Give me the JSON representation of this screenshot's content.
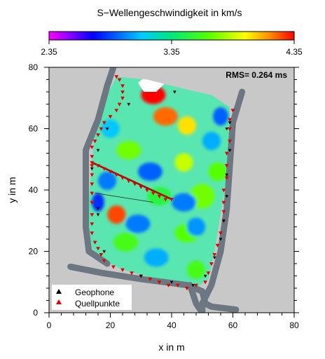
{
  "chart_data": {
    "type": "heatmap",
    "title": "S−Wellengeschwindigkeit in km/s",
    "xlabel": "x in m",
    "ylabel": "y in m",
    "xlim": [
      0,
      80
    ],
    "ylim": [
      0,
      80
    ],
    "x_ticks": [
      "0",
      "20",
      "40",
      "60",
      "80"
    ],
    "y_ticks": [
      "0",
      "20",
      "40",
      "60",
      "80"
    ],
    "colorbar": {
      "min": 2.35,
      "max": 4.35,
      "ticks": [
        "2.35",
        "3.35",
        "4.35"
      ],
      "colormap": "rainbow",
      "orientation": "horizontal",
      "placement": "top"
    },
    "annotation": "RMS= 0.264 ms",
    "grid": false,
    "background_color": "#c8c8c8",
    "legend": {
      "placement": "bottom-left",
      "entries": [
        {
          "label": "Geophone",
          "marker": "triangle-up",
          "color": "#000000"
        },
        {
          "label": "Quellpunkte",
          "marker": "triangle-up",
          "color": "#e00000"
        }
      ]
    },
    "model_outline": [
      [
        14,
        49
      ],
      [
        15,
        60
      ],
      [
        19,
        71
      ],
      [
        22,
        77
      ],
      [
        32,
        76
      ],
      [
        44,
        73
      ],
      [
        53,
        71
      ],
      [
        59,
        67
      ],
      [
        59,
        57
      ],
      [
        58,
        44
      ],
      [
        56,
        32
      ],
      [
        54,
        20
      ],
      [
        52,
        11
      ],
      [
        48,
        8
      ],
      [
        43,
        8
      ],
      [
        35,
        11
      ],
      [
        24,
        14
      ],
      [
        18,
        17
      ],
      [
        14,
        21
      ],
      [
        13,
        28
      ],
      [
        13,
        38
      ]
    ],
    "velocity_anomalies": [
      {
        "x": 22,
        "y": 32,
        "sx": 3,
        "sy": 3,
        "v": 4.25
      },
      {
        "x": 38,
        "y": 64,
        "sx": 4,
        "sy": 3,
        "v": 4.2
      },
      {
        "x": 34,
        "y": 71,
        "sx": 4,
        "sy": 3,
        "v": 4.35
      },
      {
        "x": 45,
        "y": 61,
        "sx": 3,
        "sy": 3,
        "v": 4.0
      },
      {
        "x": 44,
        "y": 49,
        "sx": 3,
        "sy": 3,
        "v": 3.85
      },
      {
        "x": 26,
        "y": 53,
        "sx": 4,
        "sy": 3,
        "v": 3.7
      },
      {
        "x": 55,
        "y": 46,
        "sx": 3,
        "sy": 3,
        "v": 3.65
      },
      {
        "x": 50,
        "y": 38,
        "sx": 4,
        "sy": 4,
        "v": 3.7
      },
      {
        "x": 36,
        "y": 38,
        "sx": 4,
        "sy": 3,
        "v": 3.5
      },
      {
        "x": 25,
        "y": 23,
        "sx": 4,
        "sy": 3,
        "v": 3.6
      },
      {
        "x": 45,
        "y": 26,
        "sx": 4,
        "sy": 3,
        "v": 3.65
      },
      {
        "x": 48,
        "y": 14,
        "sx": 3,
        "sy": 3,
        "v": 3.6
      },
      {
        "x": 56,
        "y": 64,
        "sx": 2.5,
        "sy": 3,
        "v": 2.9
      },
      {
        "x": 33,
        "y": 46,
        "sx": 4,
        "sy": 3,
        "v": 2.9
      },
      {
        "x": 44,
        "y": 36,
        "sx": 4,
        "sy": 3,
        "v": 2.95
      },
      {
        "x": 29,
        "y": 29,
        "sx": 4,
        "sy": 3,
        "v": 2.95
      },
      {
        "x": 19,
        "y": 43,
        "sx": 3,
        "sy": 3,
        "v": 2.95
      },
      {
        "x": 16,
        "y": 36,
        "sx": 2,
        "sy": 3,
        "v": 2.8
      },
      {
        "x": 48,
        "y": 28,
        "sx": 3,
        "sy": 3,
        "v": 3.0
      },
      {
        "x": 35,
        "y": 18,
        "sx": 4,
        "sy": 3,
        "v": 3.05
      },
      {
        "x": 20,
        "y": 60,
        "sx": 3,
        "sy": 3,
        "v": 3.1
      },
      {
        "x": 53,
        "y": 56,
        "sx": 3,
        "sy": 3,
        "v": 3.05
      }
    ],
    "wall_left": [
      [
        21,
        80
      ],
      [
        19,
        74
      ],
      [
        16,
        63
      ],
      [
        12,
        53
      ],
      [
        12,
        40
      ],
      [
        12,
        28
      ],
      [
        13,
        20
      ],
      [
        19,
        16
      ]
    ],
    "wall_bottom": [
      [
        7,
        15
      ],
      [
        17,
        13
      ],
      [
        30,
        11
      ],
      [
        45,
        9
      ],
      [
        50,
        7
      ],
      [
        51,
        3
      ],
      [
        53,
        2
      ],
      [
        61,
        1
      ]
    ],
    "wall_right": [
      [
        63,
        72
      ],
      [
        60,
        62
      ],
      [
        59,
        48
      ],
      [
        58,
        34
      ],
      [
        56,
        20
      ],
      [
        53,
        9
      ],
      [
        50,
        3
      ],
      [
        50,
        0
      ]
    ],
    "wall_spur": [
      [
        46,
        9
      ],
      [
        48,
        3
      ],
      [
        50,
        0
      ]
    ],
    "sources": [
      [
        22,
        77
      ],
      [
        23,
        76
      ],
      [
        24,
        74
      ],
      [
        24,
        72
      ],
      [
        24,
        70
      ],
      [
        23,
        68
      ],
      [
        22,
        66
      ],
      [
        20,
        64
      ],
      [
        18,
        62
      ],
      [
        17,
        60
      ],
      [
        16,
        58
      ],
      [
        15,
        56
      ],
      [
        14,
        54
      ],
      [
        14,
        51
      ],
      [
        14,
        48
      ],
      [
        14,
        45
      ],
      [
        14,
        42
      ],
      [
        14,
        39
      ],
      [
        14,
        36
      ],
      [
        14,
        32
      ],
      [
        14,
        29
      ],
      [
        14,
        26
      ],
      [
        15,
        23
      ],
      [
        16,
        21
      ],
      [
        17,
        19
      ],
      [
        18,
        17
      ],
      [
        21,
        15
      ],
      [
        24,
        14
      ],
      [
        27,
        13
      ],
      [
        30,
        12
      ],
      [
        33,
        11
      ],
      [
        36,
        10
      ],
      [
        39,
        9
      ],
      [
        42,
        9
      ],
      [
        45,
        8
      ],
      [
        48,
        9
      ],
      [
        51,
        10
      ],
      [
        52,
        13
      ],
      [
        53,
        16
      ],
      [
        54,
        19
      ],
      [
        55,
        22
      ],
      [
        56,
        26
      ],
      [
        57,
        30
      ],
      [
        57,
        33
      ],
      [
        57,
        36
      ],
      [
        57,
        40
      ],
      [
        58,
        44
      ],
      [
        58,
        48
      ],
      [
        58,
        52
      ],
      [
        59,
        56
      ],
      [
        59,
        60
      ],
      [
        59,
        63
      ],
      [
        60,
        66
      ],
      [
        14,
        49
      ],
      [
        16,
        48
      ],
      [
        18,
        47
      ],
      [
        20,
        46
      ],
      [
        22,
        45
      ],
      [
        24,
        44
      ],
      [
        26,
        43
      ],
      [
        28,
        42
      ],
      [
        30,
        41
      ],
      [
        32,
        40
      ],
      [
        34,
        39
      ],
      [
        36,
        38
      ],
      [
        38,
        37
      ],
      [
        40,
        37
      ]
    ],
    "geophones": [
      [
        26,
        68
      ],
      [
        19,
        60
      ],
      [
        16,
        53
      ],
      [
        14,
        47
      ],
      [
        16,
        34
      ],
      [
        16,
        32
      ],
      [
        18,
        20
      ],
      [
        30,
        12
      ],
      [
        40,
        10
      ],
      [
        47,
        9
      ],
      [
        51,
        12
      ],
      [
        54,
        18
      ],
      [
        56,
        24
      ],
      [
        57,
        30
      ],
      [
        58,
        38
      ],
      [
        58,
        45
      ],
      [
        59,
        53
      ],
      [
        58,
        60
      ],
      [
        59,
        62
      ],
      [
        41,
        72
      ]
    ],
    "profiles": [
      {
        "from": [
          14,
          49
        ],
        "to": [
          40,
          37
        ],
        "color": "#b00000",
        "width": 2.5
      },
      {
        "from": [
          15,
          39
        ],
        "to": [
          34,
          36
        ],
        "color": "#222222",
        "width": 0.8
      }
    ]
  }
}
